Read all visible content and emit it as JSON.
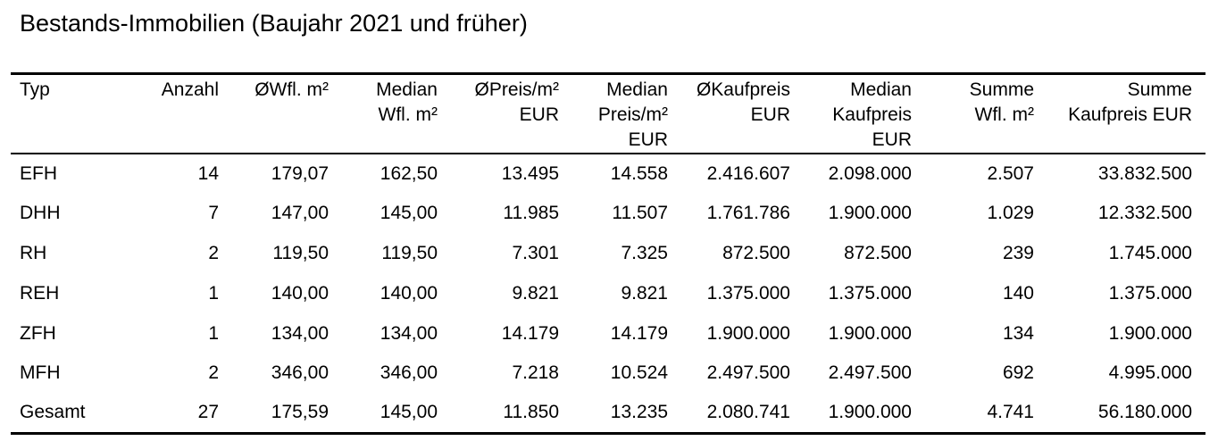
{
  "title": "Bestands-Immobilien (Baujahr 2021 und früher)",
  "columns": [
    [
      "Typ"
    ],
    [
      "Anzahl"
    ],
    [
      "ØWfl. m²"
    ],
    [
      "Median",
      "Wfl. m²"
    ],
    [
      "ØPreis/m²",
      "EUR"
    ],
    [
      "Median",
      "Preis/m²",
      "EUR"
    ],
    [
      "ØKaufpreis",
      "EUR"
    ],
    [
      "Median",
      "Kaufpreis",
      "EUR"
    ],
    [
      "Summe",
      "Wfl. m²"
    ],
    [
      "Summe",
      "Kaufpreis EUR"
    ]
  ],
  "rows": [
    [
      "EFH",
      "14",
      "179,07",
      "162,50",
      "13.495",
      "14.558",
      "2.416.607",
      "2.098.000",
      "2.507",
      "33.832.500"
    ],
    [
      "DHH",
      "7",
      "147,00",
      "145,00",
      "11.985",
      "11.507",
      "1.761.786",
      "1.900.000",
      "1.029",
      "12.332.500"
    ],
    [
      "RH",
      "2",
      "119,50",
      "119,50",
      "7.301",
      "7.325",
      "872.500",
      "872.500",
      "239",
      "1.745.000"
    ],
    [
      "REH",
      "1",
      "140,00",
      "140,00",
      "9.821",
      "9.821",
      "1.375.000",
      "1.375.000",
      "140",
      "1.375.000"
    ],
    [
      "ZFH",
      "1",
      "134,00",
      "134,00",
      "14.179",
      "14.179",
      "1.900.000",
      "1.900.000",
      "134",
      "1.900.000"
    ],
    [
      "MFH",
      "2",
      "346,00",
      "346,00",
      "7.218",
      "10.524",
      "2.497.500",
      "2.497.500",
      "692",
      "4.995.000"
    ],
    [
      "Gesamt",
      "27",
      "175,59",
      "145,00",
      "11.850",
      "13.235",
      "2.080.741",
      "1.900.000",
      "4.741",
      "56.180.000"
    ]
  ]
}
